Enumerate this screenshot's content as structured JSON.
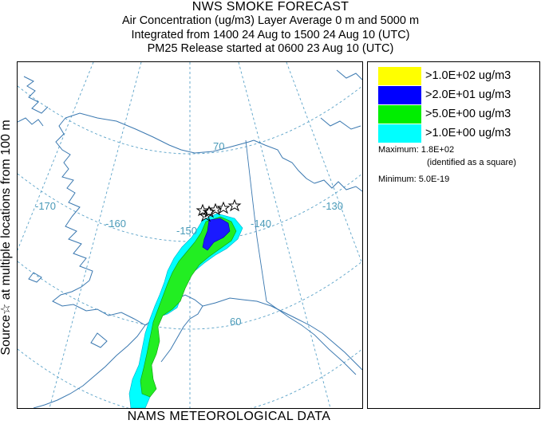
{
  "header": {
    "title": "NWS SMOKE FORECAST",
    "line2": "Air Concentration (ug/m3) Layer Average    0 m and  5000 m",
    "line3": "Integrated from 1400 24 Aug to 1500 24 Aug 10 (UTC)",
    "line4": "PM25 Release started at 0600 23 Aug 10 (UTC)"
  },
  "side_label": "Source☆  at multiple locations   from  100 m",
  "footer": "NAMS METEOROLOGICAL DATA",
  "graticule_labels": {
    "lon_170": "-170",
    "lon_160": "-160",
    "lon_150": "-150",
    "lon_140": "-140",
    "lon_130": "-130",
    "lat_70": "70",
    "lat_60": "60"
  },
  "legend": {
    "items": [
      {
        "label": ">1.0E+02 ug/m3",
        "color": "#ffff00"
      },
      {
        "label": ">2.0E+01 ug/m3",
        "color": "#0000ff"
      },
      {
        "label": ">5.0E+00 ug/m3",
        "color": "#00ee00"
      },
      {
        "label": ">1.0E+00 ug/m3",
        "color": "#00ffff"
      }
    ],
    "maximum": "Maximum: 1.8E+02",
    "maximum_note": "(identified as a square)",
    "minimum": "Minimum: 5.0E-19"
  },
  "colors": {
    "coastline": "#3a78b0",
    "graticule": "#5aa2c8",
    "border": "#3a78b0",
    "plume_cyan": "#00ffff",
    "plume_green": "#22ee22",
    "plume_blue": "#1a1aff"
  }
}
